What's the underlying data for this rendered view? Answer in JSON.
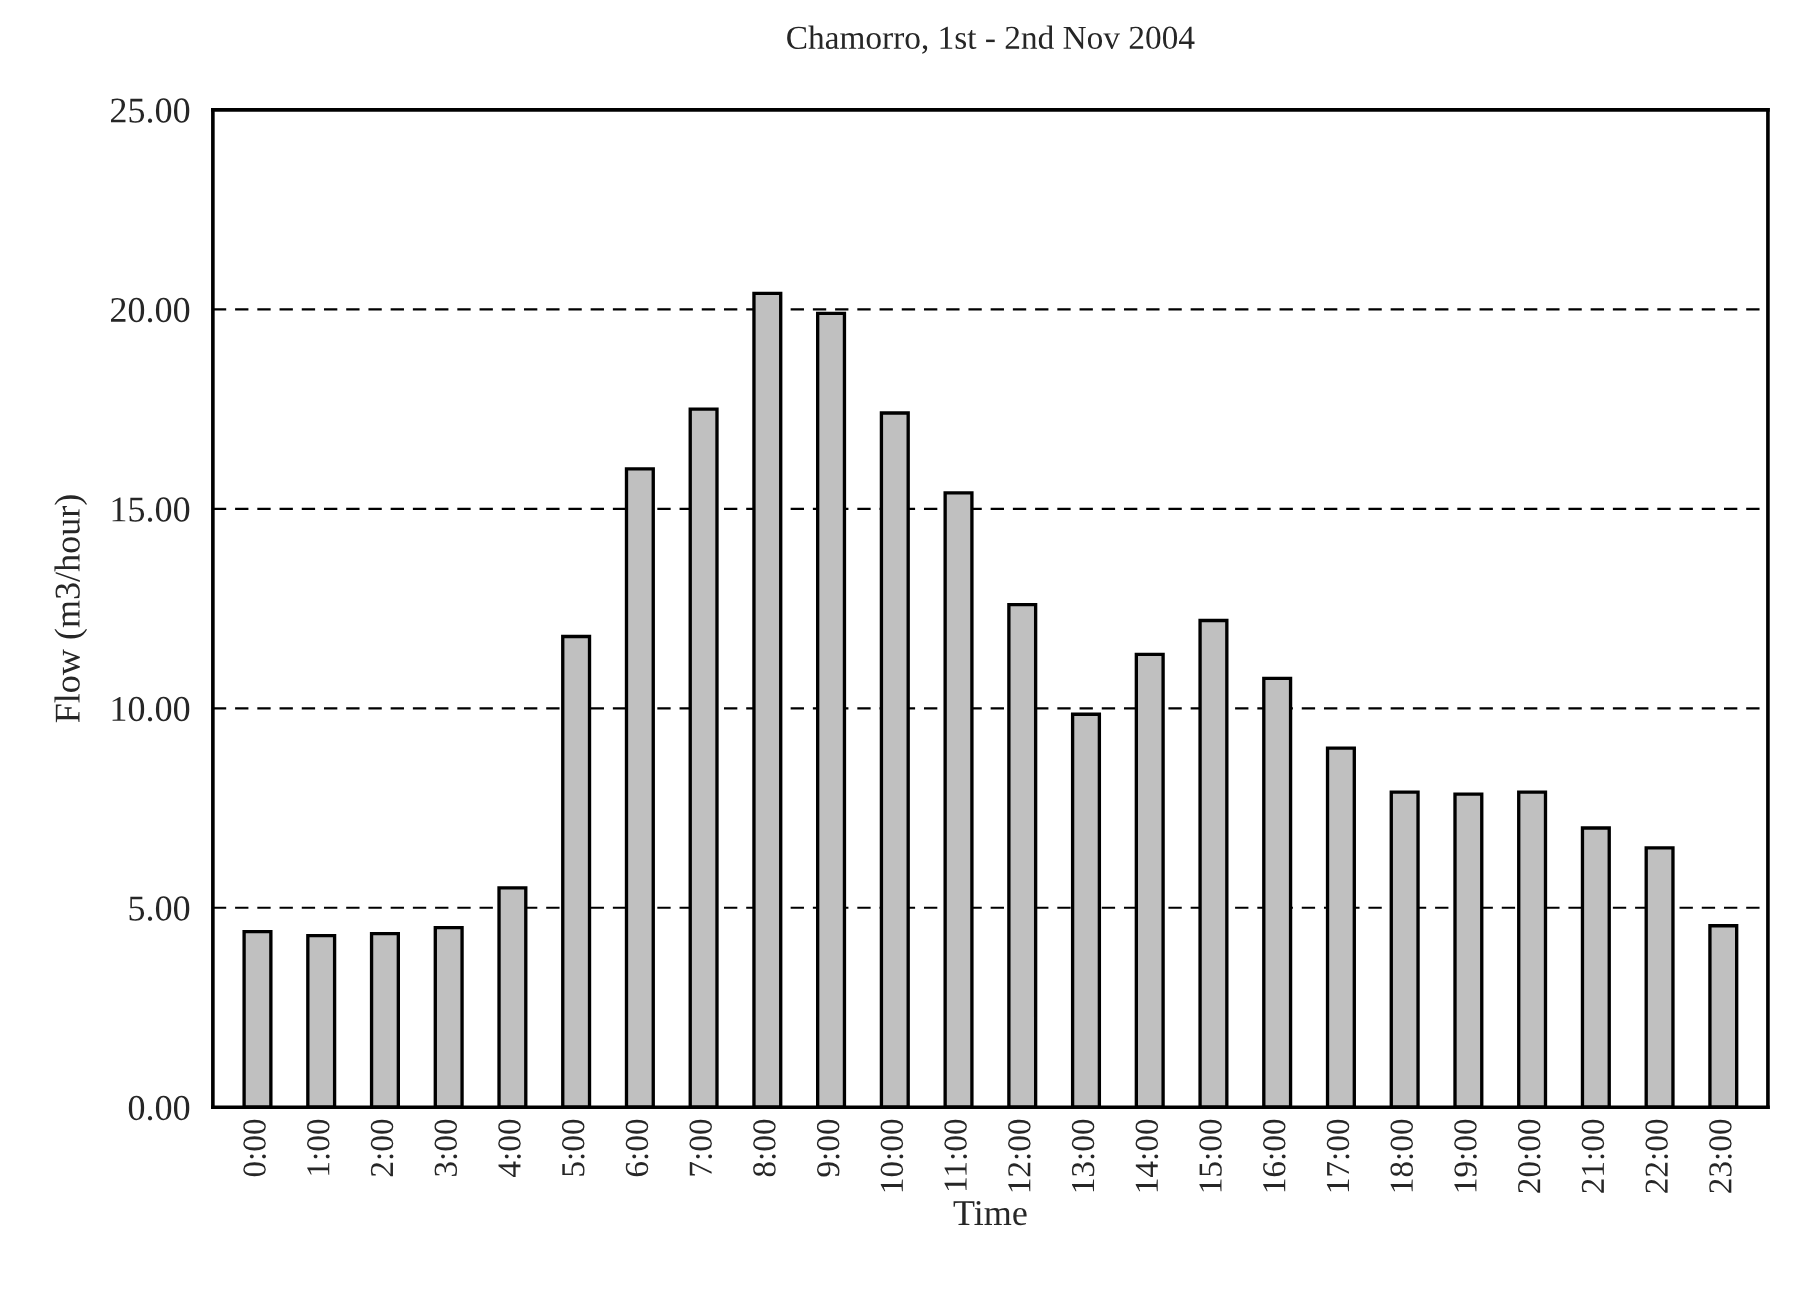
{
  "chart_data": {
    "type": "bar",
    "title": "Chamorro, 1st - 2nd Nov 2004",
    "xlabel": "Time",
    "ylabel": "Flow (m3/hour)",
    "categories": [
      "0:00",
      "1:00",
      "2:00",
      "3:00",
      "4:00",
      "5:00",
      "6:00",
      "7:00",
      "8:00",
      "9:00",
      "10:00",
      "11:00",
      "12:00",
      "13:00",
      "14:00",
      "15:00",
      "16:00",
      "17:00",
      "18:00",
      "19:00",
      "20:00",
      "21:00",
      "22:00",
      "23:00"
    ],
    "values": [
      4.4,
      4.3,
      4.35,
      4.5,
      5.5,
      11.8,
      16.0,
      17.5,
      20.4,
      19.9,
      17.4,
      15.4,
      12.6,
      9.85,
      11.35,
      12.2,
      10.75,
      9.0,
      7.9,
      7.85,
      7.9,
      7.0,
      6.5,
      4.55
    ],
    "color": "#c0c0c0",
    "ylim": [
      0,
      25
    ],
    "yticks": [
      {
        "value": 0,
        "label": "0.00"
      },
      {
        "value": 5,
        "label": "5.00"
      },
      {
        "value": 10,
        "label": "10.00"
      },
      {
        "value": 15,
        "label": "15.00"
      },
      {
        "value": 20,
        "label": "20.00"
      },
      {
        "value": 25,
        "label": "25.00"
      }
    ],
    "grid": "y",
    "line_style": "dashed"
  }
}
